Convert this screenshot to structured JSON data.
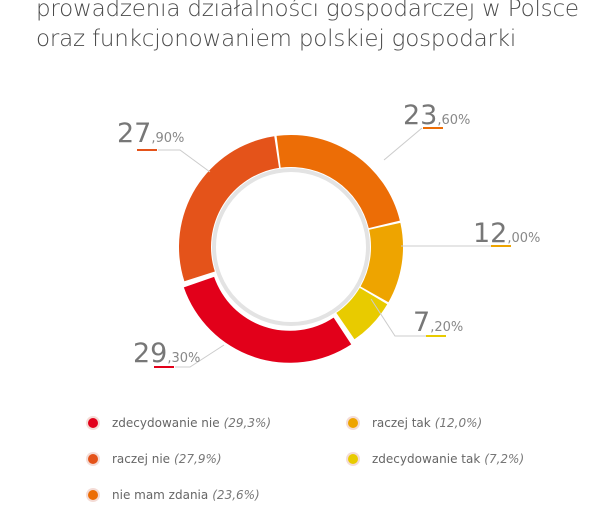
{
  "title_lines": [
    "prowadzenia działalności gospodarczej w Polsce",
    "oraz funkcjonowaniem polskiej gospodarki"
  ],
  "chart_data": {
    "type": "pie",
    "variant": "donut",
    "slices": [
      {
        "label": "nie mam zdania",
        "value": 23.6,
        "int": "23",
        "dec": ",60%",
        "legend_value": "(23,6%)",
        "color": "#ec6d06"
      },
      {
        "label": "raczej tak",
        "value": 12.0,
        "int": "12",
        "dec": ",00%",
        "legend_value": "(12,0%)",
        "color": "#eea400"
      },
      {
        "label": "zdecydowanie tak",
        "value": 7.2,
        "int": "7",
        "dec": ",20%",
        "legend_value": "(7,2%)",
        "color": "#e8cb00"
      },
      {
        "label": "zdecydowanie nie",
        "value": 29.3,
        "int": "29",
        "dec": ",30%",
        "legend_value": "(29,3%)",
        "color": "#e2001a"
      },
      {
        "label": "raczej nie",
        "value": 27.9,
        "int": "27",
        "dec": ",90%",
        "legend_value": "(27,9%)",
        "color": "#e4531a"
      }
    ],
    "legend_order": [
      3,
      4,
      0,
      1,
      2
    ]
  }
}
